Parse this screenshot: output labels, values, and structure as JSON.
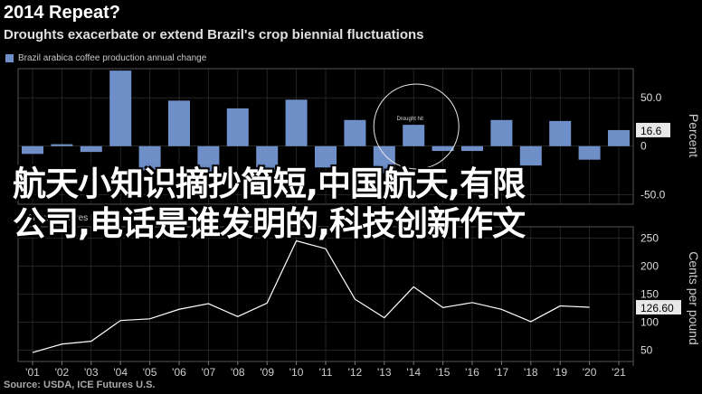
{
  "header": {
    "title": "2014 Repeat?",
    "subtitle": "Droughts exacerbate or extend Brazil's crop biennial fluctuations"
  },
  "footer": {
    "source": "Source: USDA, ICE Futures U.S."
  },
  "overlay": {
    "line1": "航天小知识摘抄简短,中国航天,有限",
    "line2": "公司,电话是谁发明的,科技创新作文"
  },
  "colors": {
    "bar": "#6f8fc9",
    "line": "#ffffff",
    "background": "#000000",
    "grid": "#3a3a3a"
  },
  "chart_data": [
    {
      "type": "bar",
      "legend": "Brazil arabica coffee production annual change",
      "ylabel": "Percent",
      "ylim": [
        -60,
        80
      ],
      "yticks": [
        "50.0",
        "0",
        "-50.0"
      ],
      "last_value_label": "16.6",
      "annotation": "Drought hit",
      "categories": [
        "'01",
        "'02",
        "'03",
        "'04",
        "'05",
        "'06",
        "'07",
        "'08",
        "'09",
        "'10",
        "'11",
        "'12",
        "'13",
        "'14",
        "'15",
        "'16",
        "'17",
        "'18",
        "'19",
        "'20",
        "'21"
      ],
      "values": [
        -8,
        2,
        -6,
        78,
        -25,
        47,
        -32,
        39,
        -26,
        48,
        -22,
        27,
        -28,
        22,
        -5,
        -5,
        27,
        -20,
        26,
        -14,
        16.6
      ]
    },
    {
      "type": "line",
      "legend": "Arabica futures N.Y. (cents/lb)",
      "ylabel": "Cents per pound",
      "ylim": [
        30,
        270
      ],
      "yticks": [
        "250",
        "200",
        "150",
        "100",
        "50"
      ],
      "last_value_label": "126.60",
      "x": [
        "'01",
        "'02",
        "'03",
        "'04",
        "'05",
        "'06",
        "'07",
        "'08",
        "'09",
        "'10",
        "'11",
        "'12",
        "'13",
        "'14",
        "'15",
        "'16",
        "'17",
        "'18",
        "'19",
        "'20"
      ],
      "values": [
        46,
        61,
        66,
        103,
        106,
        123,
        133,
        110,
        134,
        245,
        231,
        141,
        108,
        163,
        126,
        135,
        123,
        101,
        129,
        126.6
      ]
    }
  ]
}
